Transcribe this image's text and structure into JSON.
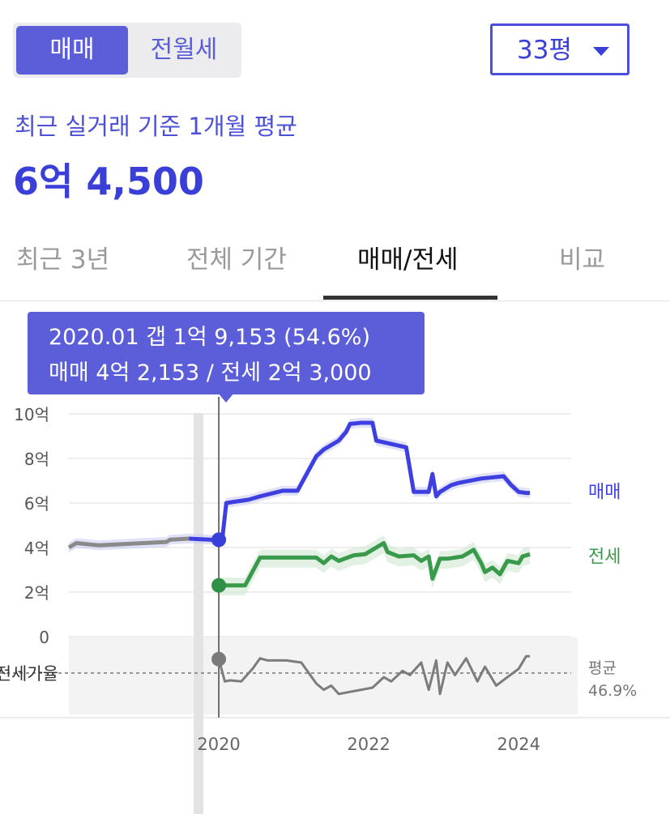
{
  "trade_toggle": {
    "sale_label": "매매",
    "rent_label": "전월세"
  },
  "size_select": {
    "value": "33평"
  },
  "summary": {
    "subtitle": "최근 실거래 기준 1개월 평균",
    "price": "6억 4,500"
  },
  "tabs": [
    {
      "label": "최근 3년",
      "active": false
    },
    {
      "label": "전체 기간",
      "active": false
    },
    {
      "label": "매매/전세",
      "active": true
    },
    {
      "label": "비교",
      "active": false
    }
  ],
  "tooltip": {
    "line1": "2020.01  갭 1억 9,153 (54.6%)",
    "line2": "매매 4억 2,153 / 전세 2억 3,000"
  },
  "colors": {
    "accent": "#4b4fdc",
    "sale": "#3d3fe0",
    "lease": "#3a9a4c",
    "pre_sale": "#8a8a8a",
    "ratio": "#7c7c7c"
  },
  "chart_data": {
    "type": "line",
    "unit": "억",
    "ylim": [
      0,
      10
    ],
    "y_ticks": [
      0,
      2,
      4,
      6,
      8,
      10
    ],
    "y_tick_labels": [
      "0",
      "2억",
      "4억",
      "6억",
      "8억",
      "10억"
    ],
    "x_ticks": [
      2020,
      2022,
      2024
    ],
    "x_tick_labels": [
      "2020",
      "2022",
      "2024"
    ],
    "xlim": [
      2018.0,
      2024.7
    ],
    "selected_x": 2020.0,
    "series": [
      {
        "name": "매매",
        "key": "sale",
        "x": [
          2018.0,
          2018.1,
          2018.4,
          2018.7,
          2019.0,
          2019.3,
          2019.35,
          2019.6,
          2019.9,
          2020.0,
          2020.05,
          2020.1,
          2020.4,
          2020.55,
          2020.85,
          2021.05,
          2021.3,
          2021.4,
          2021.6,
          2021.7,
          2021.75,
          2021.9,
          2022.05,
          2022.1,
          2022.5,
          2022.6,
          2022.8,
          2022.85,
          2022.9,
          2022.95,
          2023.1,
          2023.2,
          2023.5,
          2023.8,
          2023.9,
          2024.0,
          2024.1,
          2024.15
        ],
        "y": [
          4.0,
          4.2,
          4.1,
          4.15,
          4.2,
          4.25,
          4.35,
          4.4,
          4.35,
          4.2,
          4.5,
          6.0,
          6.15,
          6.3,
          6.55,
          6.55,
          8.1,
          8.4,
          8.8,
          9.2,
          9.55,
          9.6,
          9.6,
          8.8,
          8.5,
          6.5,
          6.5,
          7.3,
          6.3,
          6.5,
          6.8,
          6.9,
          7.1,
          7.2,
          6.8,
          6.5,
          6.45,
          6.45
        ]
      },
      {
        "name": "전세",
        "key": "lease",
        "x": [
          2020.0,
          2020.15,
          2020.35,
          2020.55,
          2020.75,
          2021.3,
          2021.4,
          2021.5,
          2021.6,
          2021.8,
          2021.95,
          2022.2,
          2022.25,
          2022.4,
          2022.6,
          2022.7,
          2022.8,
          2022.85,
          2022.95,
          2023.05,
          2023.25,
          2023.4,
          2023.5,
          2023.55,
          2023.65,
          2023.75,
          2023.85,
          2024.0,
          2024.05,
          2024.15
        ],
        "y": [
          2.3,
          2.3,
          2.3,
          3.55,
          3.55,
          3.55,
          3.3,
          3.6,
          3.4,
          3.65,
          3.7,
          4.2,
          3.8,
          3.6,
          3.65,
          3.4,
          3.6,
          2.6,
          3.5,
          3.5,
          3.6,
          3.9,
          3.3,
          2.9,
          3.1,
          2.8,
          3.4,
          3.3,
          3.6,
          3.7
        ]
      }
    ],
    "ratio_series": {
      "name": "전세가율",
      "x": [
        2020.0,
        2020.08,
        2020.15,
        2020.3,
        2020.45,
        2020.55,
        2020.65,
        2020.9,
        2021.1,
        2021.3,
        2021.4,
        2021.5,
        2021.6,
        2021.75,
        2021.9,
        2022.05,
        2022.2,
        2022.3,
        2022.45,
        2022.55,
        2022.7,
        2022.8,
        2022.9,
        2022.95,
        2023.05,
        2023.15,
        2023.3,
        2023.45,
        2023.55,
        2023.7,
        2023.85,
        2024.0,
        2024.1,
        2024.15
      ],
      "y": [
        54.6,
        44,
        44.5,
        44,
        50,
        55,
        54,
        54,
        53,
        43,
        40,
        42,
        38,
        39,
        40,
        41,
        46,
        44,
        49,
        47,
        53,
        40,
        54,
        38,
        53,
        47,
        55,
        44,
        51,
        42,
        46,
        50,
        56,
        56
      ],
      "average_label": "평균",
      "average_value": "46.9%"
    },
    "axis_label_ratio": "전세가율"
  }
}
